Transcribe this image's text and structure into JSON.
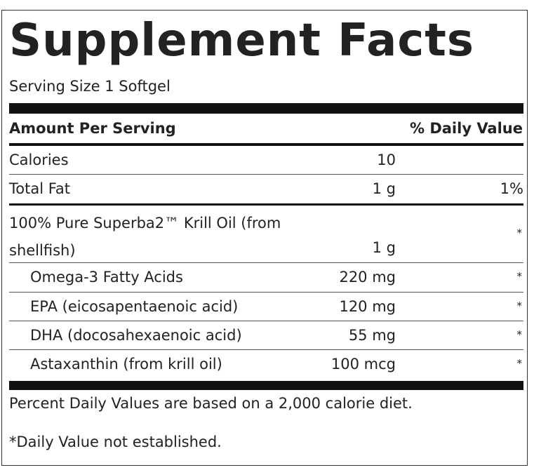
{
  "title": "Supplement Facts",
  "serving_size": "Serving Size 1 Softgel",
  "header": {
    "amount": "Amount Per Serving",
    "daily_value": "% Daily Value"
  },
  "rows": [
    {
      "name": "Calories",
      "amount": "10"
    },
    {
      "name": "Total Fat",
      "amount": "1 g",
      "daily_value": "1%"
    },
    {
      "name": "100% Pure Superba2™ Krill Oil (from shellfish)",
      "amount": "1 g",
      "daily_value": "*"
    },
    {
      "name": "Omega-3 Fatty Acids",
      "amount": "220 mg",
      "daily_value": "*"
    },
    {
      "name": "EPA (eicosapentaenoic acid)",
      "amount": "120 mg",
      "daily_value": "*"
    },
    {
      "name": "DHA (docosahexaenoic acid)",
      "amount": "55 mg",
      "daily_value": "*"
    },
    {
      "name": "Astaxanthin (from krill oil)",
      "amount": "100 mcg",
      "daily_value": "*"
    }
  ],
  "footnotes": [
    "Percent Daily Values are based on a 2,000 calorie diet.",
    "*Daily Value not established."
  ]
}
